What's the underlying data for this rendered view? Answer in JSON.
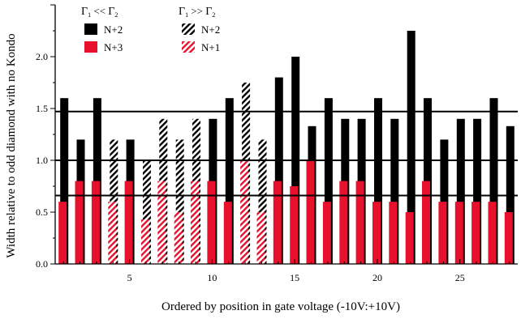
{
  "chart_data": {
    "type": "bar",
    "xlabel": "Ordered by position in gate voltage (-10V:+10V)",
    "ylabel": "Width relative to odd diamond with no Kondo",
    "xlim": [
      0.5,
      28.5
    ],
    "ylim": [
      0.0,
      2.5
    ],
    "xticks": [
      5,
      10,
      15,
      20,
      25
    ],
    "yticks": [
      0.0,
      0.5,
      1.0,
      1.5,
      2.0
    ],
    "grid": false,
    "reference_lines": [
      0.66,
      1.0,
      1.47
    ],
    "legend": {
      "placement": "top-left",
      "groups": [
        {
          "header": "Γ₁ << Γ₂",
          "h_main": "Γ",
          "h_sub1": "1",
          "h_rel": "<<",
          "h_sub2": "2"
        },
        {
          "header": "Γ₁ >> Γ₂",
          "h_main": "Γ",
          "h_sub1": "1",
          "h_rel": ">>",
          "h_sub2": "2"
        }
      ]
    },
    "series": [
      {
        "name": "N+2",
        "legend_group": 0,
        "color": "#000000",
        "pattern": "solid",
        "points": [
          {
            "x": 1,
            "y": 1.6
          },
          {
            "x": 2,
            "y": 1.2
          },
          {
            "x": 3,
            "y": 1.6
          },
          {
            "x": 5,
            "y": 1.2
          },
          {
            "x": 10,
            "y": 1.4
          },
          {
            "x": 11,
            "y": 1.6
          },
          {
            "x": 14,
            "y": 1.8
          },
          {
            "x": 15,
            "y": 2.0
          },
          {
            "x": 16,
            "y": 1.33
          },
          {
            "x": 17,
            "y": 1.6
          },
          {
            "x": 18,
            "y": 1.4
          },
          {
            "x": 19,
            "y": 1.4
          },
          {
            "x": 20,
            "y": 1.6
          },
          {
            "x": 21,
            "y": 1.4
          },
          {
            "x": 22,
            "y": 2.25
          },
          {
            "x": 23,
            "y": 1.6
          },
          {
            "x": 24,
            "y": 1.2
          },
          {
            "x": 25,
            "y": 1.4
          },
          {
            "x": 26,
            "y": 1.4
          },
          {
            "x": 27,
            "y": 1.6
          },
          {
            "x": 28,
            "y": 1.33
          }
        ]
      },
      {
        "name": "N+3",
        "legend_group": 0,
        "color": "#e8112d",
        "pattern": "solid",
        "points": [
          {
            "x": 1,
            "y": 0.6
          },
          {
            "x": 2,
            "y": 0.8
          },
          {
            "x": 3,
            "y": 0.8
          },
          {
            "x": 5,
            "y": 0.8
          },
          {
            "x": 10,
            "y": 0.8
          },
          {
            "x": 11,
            "y": 0.6
          },
          {
            "x": 14,
            "y": 0.8
          },
          {
            "x": 15,
            "y": 0.75
          },
          {
            "x": 16,
            "y": 1.0
          },
          {
            "x": 17,
            "y": 0.6
          },
          {
            "x": 18,
            "y": 0.8
          },
          {
            "x": 19,
            "y": 0.8
          },
          {
            "x": 20,
            "y": 0.6
          },
          {
            "x": 21,
            "y": 0.6
          },
          {
            "x": 22,
            "y": 0.5
          },
          {
            "x": 23,
            "y": 0.8
          },
          {
            "x": 24,
            "y": 0.6
          },
          {
            "x": 25,
            "y": 0.6
          },
          {
            "x": 26,
            "y": 0.6
          },
          {
            "x": 27,
            "y": 0.6
          },
          {
            "x": 28,
            "y": 0.5
          }
        ]
      },
      {
        "name": "N+2",
        "legend_group": 1,
        "color": "#000000",
        "pattern": "hatched",
        "points": [
          {
            "x": 4,
            "y": 1.2
          },
          {
            "x": 6,
            "y": 1.0
          },
          {
            "x": 7,
            "y": 1.4
          },
          {
            "x": 8,
            "y": 1.2
          },
          {
            "x": 9,
            "y": 1.4
          },
          {
            "x": 12,
            "y": 1.75
          },
          {
            "x": 13,
            "y": 1.2
          }
        ]
      },
      {
        "name": "N+1",
        "legend_group": 1,
        "color": "#e8112d",
        "pattern": "hatched",
        "points": [
          {
            "x": 4,
            "y": 0.6
          },
          {
            "x": 6,
            "y": 0.43
          },
          {
            "x": 7,
            "y": 0.8
          },
          {
            "x": 8,
            "y": 0.5
          },
          {
            "x": 9,
            "y": 0.8
          },
          {
            "x": 12,
            "y": 1.0
          },
          {
            "x": 13,
            "y": 0.5
          }
        ]
      }
    ]
  }
}
